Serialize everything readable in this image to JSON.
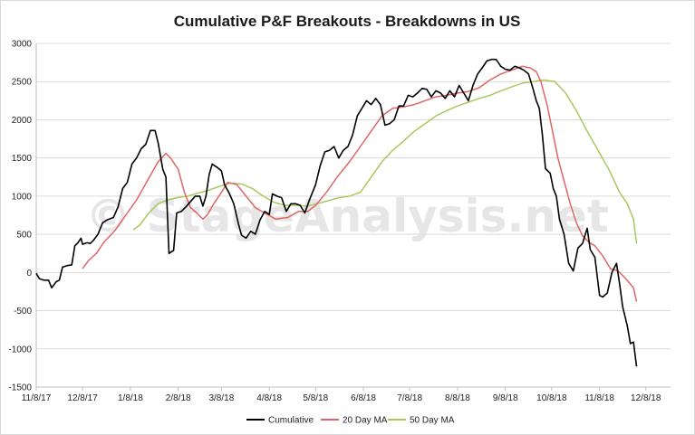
{
  "chart_data": {
    "type": "line",
    "title": "Cumulative P&F Breakouts - Breakdowns in US",
    "watermark": "© StageAnalysis.net",
    "xlabel": "",
    "ylabel": "",
    "x_ticks": [
      "11/8/17",
      "12/8/17",
      "1/8/18",
      "2/8/18",
      "3/8/18",
      "4/8/18",
      "5/8/18",
      "6/8/18",
      "7/8/18",
      "8/8/18",
      "9/8/18",
      "10/8/18",
      "11/8/18",
      "12/8/18"
    ],
    "y_ticks": [
      "3000",
      "2500",
      "2000",
      "1500",
      "1000",
      "500",
      "0",
      "-500",
      "-1000",
      "-1500"
    ],
    "ylim": [
      -1500,
      3000
    ],
    "grid": "horizontal",
    "legend_position": "bottom",
    "series": [
      {
        "name": "Cumulative",
        "color": "#000000",
        "points": [
          [
            "11/8/17",
            -10
          ],
          [
            "11/10/17",
            -80
          ],
          [
            "11/13/17",
            -100
          ],
          [
            "11/16/17",
            -100
          ],
          [
            "11/18/17",
            -200
          ],
          [
            "11/21/17",
            -120
          ],
          [
            "11/23/17",
            -100
          ],
          [
            "11/25/17",
            70
          ],
          [
            "11/28/17",
            90
          ],
          [
            "12/1/17",
            100
          ],
          [
            "12/3/17",
            350
          ],
          [
            "12/5/17",
            390
          ],
          [
            "12/7/17",
            450
          ],
          [
            "12/8/17",
            370
          ],
          [
            "12/11/17",
            390
          ],
          [
            "12/13/17",
            380
          ],
          [
            "12/15/17",
            420
          ],
          [
            "12/18/17",
            500
          ],
          [
            "12/21/17",
            650
          ],
          [
            "12/24/17",
            690
          ],
          [
            "12/28/17",
            720
          ],
          [
            "12/31/17",
            860
          ],
          [
            "1/3/18",
            1100
          ],
          [
            "1/6/18",
            1180
          ],
          [
            "1/9/18",
            1420
          ],
          [
            "1/12/18",
            1500
          ],
          [
            "1/15/18",
            1620
          ],
          [
            "1/18/18",
            1680
          ],
          [
            "1/21/18",
            1860
          ],
          [
            "1/24/18",
            1860
          ],
          [
            "1/26/18",
            1700
          ],
          [
            "1/29/18",
            1350
          ],
          [
            "1/31/18",
            1250
          ],
          [
            "2/2/18",
            250
          ],
          [
            "2/5/18",
            290
          ],
          [
            "2/7/18",
            780
          ],
          [
            "2/10/18",
            800
          ],
          [
            "2/13/18",
            860
          ],
          [
            "2/16/18",
            930
          ],
          [
            "2/19/18",
            1000
          ],
          [
            "2/22/18",
            1000
          ],
          [
            "2/24/18",
            870
          ],
          [
            "2/26/18",
            1000
          ],
          [
            "2/28/18",
            1280
          ],
          [
            "3/2/18",
            1420
          ],
          [
            "3/5/18",
            1380
          ],
          [
            "3/8/18",
            1330
          ],
          [
            "3/10/18",
            1150
          ],
          [
            "3/13/18",
            1040
          ],
          [
            "3/16/18",
            900
          ],
          [
            "3/19/18",
            640
          ],
          [
            "3/21/18",
            490
          ],
          [
            "3/24/18",
            450
          ],
          [
            "3/27/18",
            540
          ],
          [
            "3/30/18",
            500
          ],
          [
            "4/2/18",
            690
          ],
          [
            "4/5/18",
            800
          ],
          [
            "4/8/18",
            760
          ],
          [
            "4/10/18",
            1030
          ],
          [
            "4/13/18",
            1000
          ],
          [
            "4/16/18",
            980
          ],
          [
            "4/19/18",
            800
          ],
          [
            "4/22/18",
            900
          ],
          [
            "4/25/18",
            900
          ],
          [
            "4/28/18",
            880
          ],
          [
            "5/1/18",
            780
          ],
          [
            "5/4/18",
            950
          ],
          [
            "5/8/18",
            1150
          ],
          [
            "5/11/18",
            1400
          ],
          [
            "5/14/18",
            1580
          ],
          [
            "5/17/18",
            1600
          ],
          [
            "5/20/18",
            1650
          ],
          [
            "5/23/18",
            1500
          ],
          [
            "5/26/18",
            1600
          ],
          [
            "5/29/18",
            1650
          ],
          [
            "6/1/18",
            1800
          ],
          [
            "6/4/18",
            2050
          ],
          [
            "6/7/18",
            2150
          ],
          [
            "6/10/18",
            2250
          ],
          [
            "6/13/18",
            2200
          ],
          [
            "6/16/18",
            2280
          ],
          [
            "6/19/18",
            2200
          ],
          [
            "6/22/18",
            1930
          ],
          [
            "6/25/18",
            1950
          ],
          [
            "6/28/18",
            2000
          ],
          [
            "7/1/18",
            2180
          ],
          [
            "7/4/18",
            2180
          ],
          [
            "7/7/18",
            2320
          ],
          [
            "7/10/18",
            2300
          ],
          [
            "7/13/18",
            2350
          ],
          [
            "7/16/18",
            2410
          ],
          [
            "7/19/18",
            2400
          ],
          [
            "7/22/18",
            2300
          ],
          [
            "7/25/18",
            2380
          ],
          [
            "7/28/18",
            2350
          ],
          [
            "7/31/18",
            2280
          ],
          [
            "8/3/18",
            2380
          ],
          [
            "8/6/18",
            2300
          ],
          [
            "8/9/18",
            2450
          ],
          [
            "8/12/18",
            2350
          ],
          [
            "8/15/18",
            2250
          ],
          [
            "8/18/18",
            2450
          ],
          [
            "8/21/18",
            2600
          ],
          [
            "8/24/18",
            2680
          ],
          [
            "8/27/18",
            2770
          ],
          [
            "8/30/18",
            2790
          ],
          [
            "9/2/18",
            2790
          ],
          [
            "9/5/18",
            2700
          ],
          [
            "9/8/18",
            2660
          ],
          [
            "9/11/18",
            2650
          ],
          [
            "9/14/18",
            2700
          ],
          [
            "9/17/18",
            2680
          ],
          [
            "9/20/18",
            2650
          ],
          [
            "9/23/18",
            2600
          ],
          [
            "9/26/18",
            2400
          ],
          [
            "9/28/18",
            2250
          ],
          [
            "9/30/18",
            2150
          ],
          [
            "10/2/18",
            1800
          ],
          [
            "10/4/18",
            1360
          ],
          [
            "10/7/18",
            1300
          ],
          [
            "10/9/18",
            1100
          ],
          [
            "10/11/18",
            1000
          ],
          [
            "10/13/18",
            700
          ],
          [
            "10/16/18",
            500
          ],
          [
            "10/19/18",
            120
          ],
          [
            "10/22/18",
            20
          ],
          [
            "10/25/18",
            320
          ],
          [
            "10/28/18",
            380
          ],
          [
            "10/31/18",
            580
          ],
          [
            "11/2/18",
            300
          ],
          [
            "11/5/18",
            200
          ],
          [
            "11/8/18",
            -300
          ],
          [
            "11/10/18",
            -320
          ],
          [
            "11/13/18",
            -270
          ],
          [
            "11/16/18",
            0
          ],
          [
            "11/19/18",
            120
          ],
          [
            "11/21/18",
            -150
          ],
          [
            "11/23/18",
            -450
          ],
          [
            "11/26/18",
            -700
          ],
          [
            "11/28/18",
            -930
          ],
          [
            "11/30/18",
            -910
          ],
          [
            "12/2/18",
            -1230
          ]
        ]
      },
      {
        "name": "20 Day MA",
        "color": "#e06666",
        "points": [
          [
            "12/8/17",
            50
          ],
          [
            "12/12/17",
            160
          ],
          [
            "12/17/17",
            250
          ],
          [
            "12/22/17",
            400
          ],
          [
            "12/29/17",
            550
          ],
          [
            "1/5/18",
            750
          ],
          [
            "1/12/18",
            950
          ],
          [
            "1/19/18",
            1200
          ],
          [
            "1/26/18",
            1450
          ],
          [
            "1/31/18",
            1560
          ],
          [
            "2/3/18",
            1500
          ],
          [
            "2/8/18",
            1350
          ],
          [
            "2/12/18",
            1050
          ],
          [
            "2/16/18",
            850
          ],
          [
            "2/20/18",
            780
          ],
          [
            "2/24/18",
            700
          ],
          [
            "2/27/18",
            760
          ],
          [
            "3/3/18",
            900
          ],
          [
            "3/8/18",
            1050
          ],
          [
            "3/12/18",
            1180
          ],
          [
            "3/18/18",
            1150
          ],
          [
            "3/24/18",
            1000
          ],
          [
            "3/30/18",
            850
          ],
          [
            "4/5/18",
            780
          ],
          [
            "4/12/18",
            700
          ],
          [
            "4/20/18",
            720
          ],
          [
            "4/27/18",
            800
          ],
          [
            "5/3/18",
            800
          ],
          [
            "5/8/18",
            880
          ],
          [
            "5/15/18",
            1050
          ],
          [
            "5/22/18",
            1250
          ],
          [
            "5/30/18",
            1450
          ],
          [
            "6/6/18",
            1650
          ],
          [
            "6/13/18",
            1850
          ],
          [
            "6/20/18",
            2050
          ],
          [
            "6/27/18",
            2150
          ],
          [
            "7/4/18",
            2170
          ],
          [
            "7/11/18",
            2200
          ],
          [
            "7/18/18",
            2250
          ],
          [
            "7/25/18",
            2300
          ],
          [
            "8/1/18",
            2320
          ],
          [
            "8/8/18",
            2350
          ],
          [
            "8/15/18",
            2370
          ],
          [
            "8/22/18",
            2420
          ],
          [
            "8/29/18",
            2520
          ],
          [
            "9/5/18",
            2600
          ],
          [
            "9/12/18",
            2650
          ],
          [
            "9/19/18",
            2700
          ],
          [
            "9/24/18",
            2680
          ],
          [
            "9/28/18",
            2630
          ],
          [
            "10/1/18",
            2500
          ],
          [
            "10/5/18",
            2200
          ],
          [
            "10/9/18",
            1800
          ],
          [
            "10/12/18",
            1500
          ],
          [
            "10/16/18",
            1200
          ],
          [
            "10/20/18",
            900
          ],
          [
            "10/24/18",
            650
          ],
          [
            "10/28/18",
            480
          ],
          [
            "11/1/18",
            400
          ],
          [
            "11/5/18",
            350
          ],
          [
            "11/10/18",
            220
          ],
          [
            "11/15/18",
            50
          ],
          [
            "11/20/18",
            20
          ],
          [
            "11/25/18",
            -80
          ],
          [
            "11/30/18",
            -200
          ],
          [
            "12/2/18",
            -380
          ]
        ]
      },
      {
        "name": "50 Day MA",
        "color": "#a9c95f",
        "points": [
          [
            "1/10/18",
            560
          ],
          [
            "1/14/18",
            620
          ],
          [
            "1/20/18",
            780
          ],
          [
            "1/26/18",
            900
          ],
          [
            "2/1/18",
            950
          ],
          [
            "2/7/18",
            980
          ],
          [
            "2/14/18",
            1000
          ],
          [
            "2/21/18",
            1040
          ],
          [
            "2/28/18",
            1080
          ],
          [
            "3/7/18",
            1130
          ],
          [
            "3/14/18",
            1170
          ],
          [
            "3/21/18",
            1160
          ],
          [
            "3/28/18",
            1100
          ],
          [
            "4/4/18",
            1000
          ],
          [
            "4/11/18",
            920
          ],
          [
            "4/18/18",
            880
          ],
          [
            "4/25/18",
            880
          ],
          [
            "5/2/18",
            870
          ],
          [
            "5/9/18",
            900
          ],
          [
            "5/16/18",
            940
          ],
          [
            "5/23/18",
            980
          ],
          [
            "5/30/18",
            1000
          ],
          [
            "6/6/18",
            1050
          ],
          [
            "6/13/18",
            1250
          ],
          [
            "6/20/18",
            1450
          ],
          [
            "6/27/18",
            1600
          ],
          [
            "7/4/18",
            1720
          ],
          [
            "7/11/18",
            1850
          ],
          [
            "7/18/18",
            1950
          ],
          [
            "7/25/18",
            2050
          ],
          [
            "8/1/18",
            2120
          ],
          [
            "8/8/18",
            2180
          ],
          [
            "8/15/18",
            2230
          ],
          [
            "8/22/18",
            2280
          ],
          [
            "8/29/18",
            2320
          ],
          [
            "9/5/18",
            2380
          ],
          [
            "9/12/18",
            2430
          ],
          [
            "9/19/18",
            2480
          ],
          [
            "9/26/18",
            2500
          ],
          [
            "10/3/18",
            2520
          ],
          [
            "10/10/18",
            2500
          ],
          [
            "10/17/18",
            2350
          ],
          [
            "10/24/18",
            2120
          ],
          [
            "10/31/18",
            1850
          ],
          [
            "11/7/18",
            1600
          ],
          [
            "11/14/18",
            1350
          ],
          [
            "11/21/18",
            1050
          ],
          [
            "11/26/18",
            900
          ],
          [
            "11/30/18",
            700
          ],
          [
            "12/2/18",
            380
          ]
        ]
      }
    ]
  }
}
